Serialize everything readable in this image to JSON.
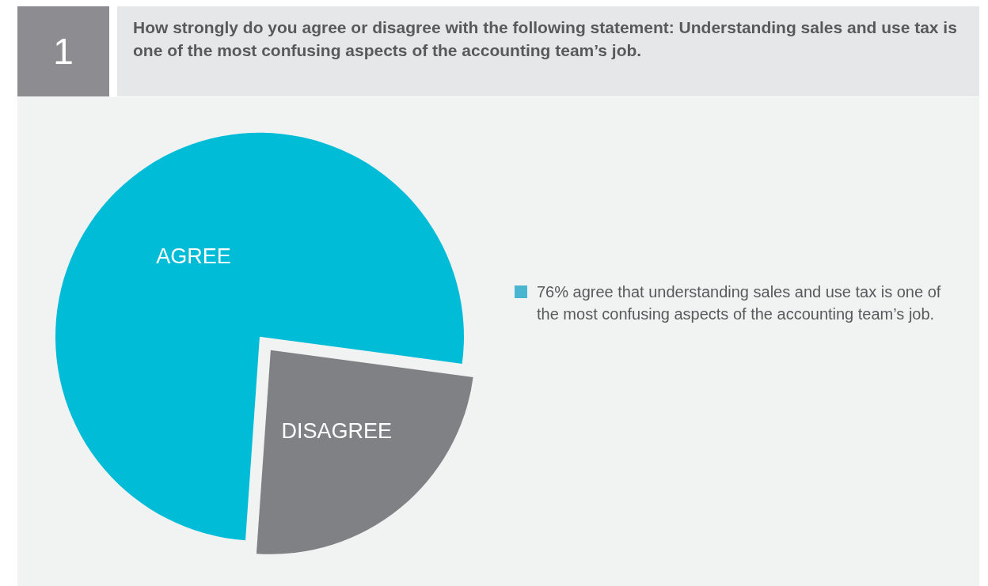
{
  "chart_data": {
    "type": "pie",
    "title": "How strongly do you agree or disagree with the following statement: Understanding sales and use tax is one of the most confusing aspects of the accounting team’s job.",
    "categories": [
      "AGREE",
      "DISAGREE"
    ],
    "values": [
      76,
      24
    ],
    "colors": [
      "#00bcd6",
      "#808184"
    ],
    "annotations": [
      "1",
      "76% agree that understanding sales and use tax is one of the most confusing aspects of the accounting team’s job."
    ]
  }
}
